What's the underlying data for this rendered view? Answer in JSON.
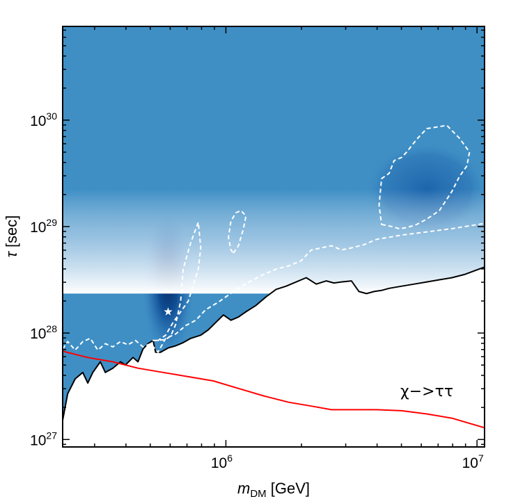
{
  "chart_data": {
    "type": "heatmap",
    "title": "",
    "xlabel": "m_DM [GeV]",
    "xlabel_main": "m",
    "xlabel_sub": "DM",
    "xlabel_unit": " [GeV]",
    "ylabel": "τ [sec]",
    "ylabel_sym": "τ",
    "ylabel_unit": " [sec]",
    "xscale": "log",
    "yscale": "log",
    "xlim_log10": [
      5.35,
      7.03
    ],
    "ylim_log10": [
      26.93,
      30.88
    ],
    "x_ticks": [
      {
        "log10": 6,
        "base": "10",
        "exp": "6"
      },
      {
        "log10": 7,
        "base": "10",
        "exp": "7"
      }
    ],
    "y_ticks": [
      {
        "log10": 27,
        "base": "10",
        "exp": "27"
      },
      {
        "log10": 28,
        "base": "10",
        "exp": "28"
      },
      {
        "log10": 29,
        "base": "10",
        "exp": "29"
      },
      {
        "log10": 30,
        "base": "10",
        "exp": "30"
      }
    ],
    "best_fit": {
      "mass_log10": 5.77,
      "tau_log10": 28.2,
      "marker": "star"
    },
    "annotation": {
      "text": "χ−>ττ",
      "position": "lower-right"
    },
    "colormap": "Blues",
    "series": [
      {
        "name": "excluded-limit",
        "color": "#000000",
        "style": "solid",
        "x": [
          5.35,
          5.37,
          5.4,
          5.43,
          5.45,
          5.47,
          5.5,
          5.52,
          5.55,
          5.58,
          5.6,
          5.63,
          5.65,
          5.67,
          5.69,
          5.71,
          5.72,
          5.74,
          5.77,
          5.8,
          5.83,
          5.86,
          5.9,
          5.93,
          5.96,
          5.99,
          6.02,
          6.05,
          6.08,
          6.12,
          6.16,
          6.2,
          6.24,
          6.28,
          6.32,
          6.36,
          6.4,
          6.43,
          6.46,
          6.5,
          6.53,
          6.56,
          6.59,
          6.62,
          6.65,
          6.7,
          6.75,
          6.8,
          6.85,
          6.9,
          6.95,
          7.03
        ],
        "y": [
          27.18,
          27.43,
          27.57,
          27.63,
          27.53,
          27.63,
          27.73,
          27.63,
          27.67,
          27.73,
          27.7,
          27.77,
          27.73,
          27.85,
          27.9,
          27.93,
          27.82,
          27.82,
          27.86,
          27.88,
          27.91,
          27.95,
          27.98,
          28.03,
          28.1,
          28.17,
          28.12,
          28.15,
          28.2,
          28.26,
          28.34,
          28.41,
          28.44,
          28.48,
          28.52,
          28.46,
          28.49,
          28.47,
          28.48,
          28.49,
          28.39,
          28.37,
          28.39,
          28.4,
          28.42,
          28.44,
          28.46,
          28.48,
          28.5,
          28.52,
          28.55,
          28.62
        ]
      },
      {
        "name": "2-sigma-contour-lower",
        "color": "#ffffff",
        "style": "dashed",
        "x": [
          5.35,
          5.37,
          5.4,
          5.43,
          5.46,
          5.49,
          5.52,
          5.55,
          5.58,
          5.61,
          5.64,
          5.67,
          5.7,
          5.73,
          5.76,
          5.8,
          5.84,
          5.88,
          5.92,
          5.97,
          6.0,
          6.05,
          6.1,
          6.15,
          6.2,
          6.25,
          6.3,
          6.34,
          6.38,
          6.42,
          6.46,
          6.5,
          6.55,
          6.6,
          6.65,
          6.7,
          6.8,
          6.9,
          7.03
        ],
        "y": [
          27.85,
          27.92,
          27.84,
          27.92,
          27.95,
          27.84,
          27.9,
          27.87,
          27.92,
          27.89,
          27.93,
          27.87,
          27.9,
          27.82,
          27.95,
          27.99,
          28.07,
          28.12,
          28.22,
          28.29,
          28.34,
          28.42,
          28.49,
          28.55,
          28.6,
          28.63,
          28.68,
          28.78,
          28.8,
          28.82,
          28.78,
          28.8,
          28.83,
          28.88,
          28.9,
          28.92,
          28.95,
          28.98,
          29.03
        ]
      },
      {
        "name": "2-sigma-contour-island-1",
        "color": "#ffffff",
        "style": "dashed",
        "x": [
          5.71,
          5.73,
          5.76,
          5.78,
          5.8,
          5.82,
          5.83,
          5.86,
          5.89,
          5.9,
          5.89,
          5.87,
          5.85,
          5.82,
          5.79,
          5.76,
          5.73,
          5.71
        ],
        "y": [
          27.93,
          27.93,
          27.94,
          27.97,
          28.08,
          28.3,
          28.6,
          28.85,
          29.04,
          28.8,
          28.6,
          28.45,
          28.3,
          28.2,
          28.1,
          27.98,
          27.93,
          27.93
        ],
        "closed": true
      },
      {
        "name": "2-sigma-contour-island-2",
        "color": "#ffffff",
        "style": "dashed",
        "x": [
          6.03,
          6.05,
          6.07,
          6.08,
          6.08,
          6.06,
          6.04,
          6.02,
          6.01,
          6.02,
          6.03
        ],
        "y": [
          28.75,
          28.82,
          28.98,
          29.1,
          29.1,
          29.15,
          29.13,
          29.05,
          28.9,
          28.78,
          28.75
        ],
        "closed": true
      },
      {
        "name": "2-sigma-contour-island-3",
        "color": "#ffffff",
        "style": "dashed",
        "x": [
          6.62,
          6.66,
          6.69,
          6.72,
          6.76,
          6.8,
          6.85,
          6.9,
          6.93,
          6.96,
          6.97,
          6.93,
          6.88,
          6.8,
          6.76,
          6.72,
          6.7,
          6.67,
          6.65,
          6.62,
          6.61,
          6.62
        ],
        "y": [
          29.02,
          29.0,
          28.98,
          28.99,
          29.02,
          29.07,
          29.15,
          29.33,
          29.47,
          29.57,
          29.7,
          29.83,
          29.95,
          29.92,
          29.82,
          29.7,
          29.65,
          29.62,
          29.5,
          29.45,
          29.2,
          29.02
        ],
        "closed": true
      },
      {
        "name": "tau-tau-channel",
        "color": "#ff0000",
        "style": "solid",
        "x": [
          5.35,
          5.45,
          5.55,
          5.65,
          5.75,
          5.85,
          5.95,
          6.05,
          6.15,
          6.25,
          6.35,
          6.42,
          6.5,
          6.6,
          6.7,
          6.8,
          6.9,
          7.03
        ],
        "y": [
          27.83,
          27.77,
          27.73,
          27.67,
          27.63,
          27.59,
          27.55,
          27.48,
          27.41,
          27.35,
          27.31,
          27.28,
          27.28,
          27.28,
          27.27,
          27.24,
          27.2,
          27.11
        ]
      }
    ]
  }
}
